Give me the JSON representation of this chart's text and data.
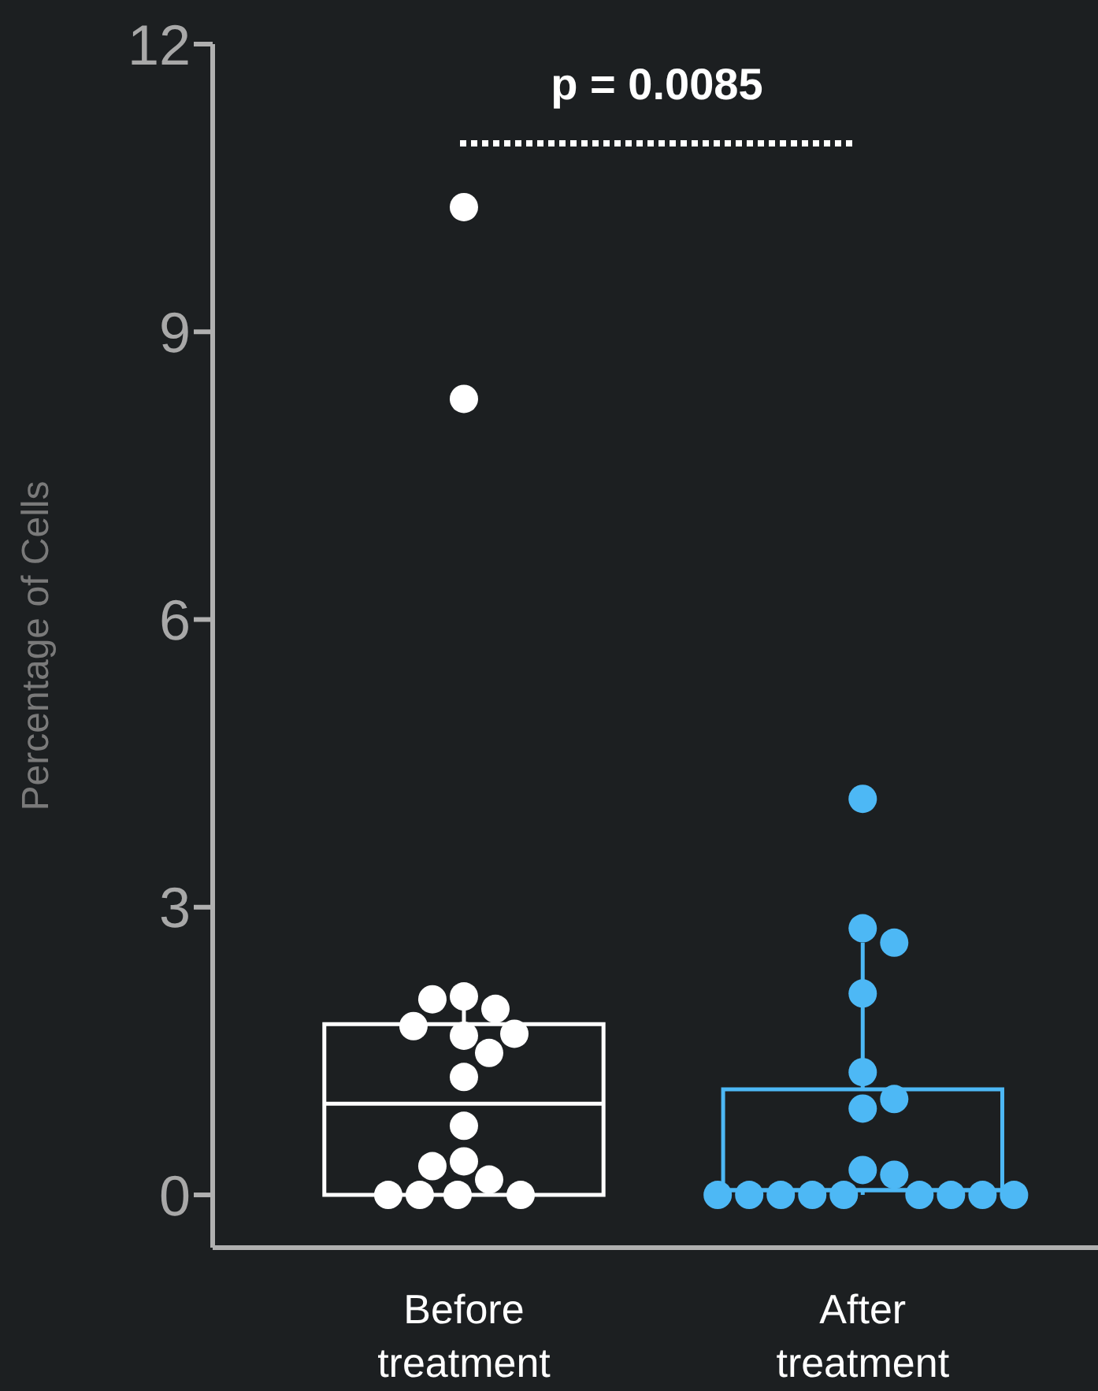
{
  "chart_data": {
    "type": "box",
    "ylabel": "Percentage of Cells",
    "categories": [
      "Before treatment",
      "After treatment"
    ],
    "ylim": [
      -0.55,
      12
    ],
    "yticks": [
      0,
      3,
      6,
      9,
      12
    ],
    "grid": false,
    "legend": false,
    "annotations": [
      "p = 0.0085"
    ],
    "series": [
      {
        "colors": [
          "#ffffff",
          "#4db8f5"
        ],
        "boxes": [
          {
            "low": 0,
            "q1": 0,
            "median": 0.95,
            "q3": 1.78,
            "high": 2.05,
            "outliers": [
              10.3,
              8.3
            ]
          },
          {
            "low": 0,
            "q1": 0.05,
            "median": 0.05,
            "q3": 1.1,
            "high": 2.63,
            "outliers": [
              4.13,
              2.78
            ]
          }
        ]
      },
      {
        "type": "scatter",
        "color": "#ffffff",
        "x": [
          "Before treatment",
          "Before treatment",
          "Before treatment",
          "Before treatment",
          "Before treatment",
          "Before treatment",
          "Before treatment",
          "Before treatment",
          "Before treatment",
          "Before treatment",
          "Before treatment",
          "Before treatment",
          "Before treatment",
          "Before treatment",
          "Before treatment",
          "Before treatment"
        ],
        "values": [
          2.07,
          1.66,
          1.94,
          2.04,
          1.76,
          1.48,
          1.68,
          1.23,
          0.72,
          0.35,
          0.16,
          0.3,
          0,
          0,
          0,
          0
        ]
      },
      {
        "type": "scatter",
        "color": "#4db8f5",
        "x": [
          "After treatment",
          "After treatment",
          "After treatment",
          "After treatment",
          "After treatment",
          "After treatment",
          "After treatment",
          "After treatment",
          "After treatment",
          "After treatment",
          "After treatment",
          "After treatment",
          "After treatment",
          "After treatment",
          "After treatment",
          "After treatment"
        ],
        "values": [
          2.63,
          2.1,
          1.28,
          0.9,
          1.0,
          0.26,
          0.21,
          0,
          0,
          0,
          0,
          0,
          0,
          0,
          0,
          0
        ]
      }
    ]
  }
}
